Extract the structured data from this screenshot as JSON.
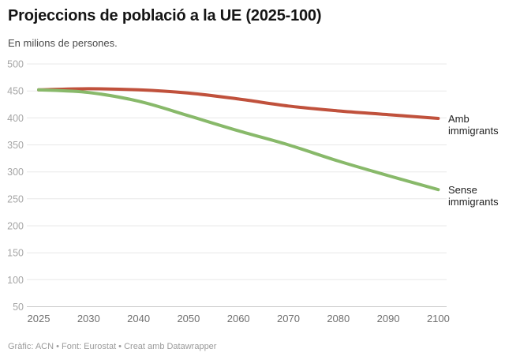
{
  "header": {
    "title": "Projeccions de població a la UE (2025-100)",
    "subtitle": "En milions de persones."
  },
  "footer": {
    "credit": "Gràfic: ACN • Font: Eurostat • Creat amb Datawrapper"
  },
  "chart_data": {
    "type": "line",
    "title": "Projeccions de població a la UE (2025-100)",
    "subtitle": "En milions de persones.",
    "unit": "milions de persones",
    "x_labels": [
      "2025",
      "2030",
      "2040",
      "2050",
      "2060",
      "2070",
      "2080",
      "2090",
      "2100"
    ],
    "x_spacing": "categorical",
    "series": [
      {
        "name": "Amb immigrants",
        "label_lines": [
          "Amb",
          "immigrants"
        ],
        "color": "#c0513c",
        "values": [
          452,
          454,
          452,
          446,
          435,
          422,
          413,
          406,
          399
        ]
      },
      {
        "name": "Sense immigrants",
        "label_lines": [
          "Sense",
          "immigrants"
        ],
        "color": "#88b96a",
        "values": [
          452,
          447,
          431,
          404,
          376,
          350,
          320,
          293,
          267
        ]
      }
    ],
    "ylim": [
      50,
      500
    ],
    "yticks": [
      500,
      450,
      400,
      350,
      300,
      250,
      200,
      150,
      100,
      50
    ],
    "grid": true,
    "legend_position": "line-end-labels"
  }
}
